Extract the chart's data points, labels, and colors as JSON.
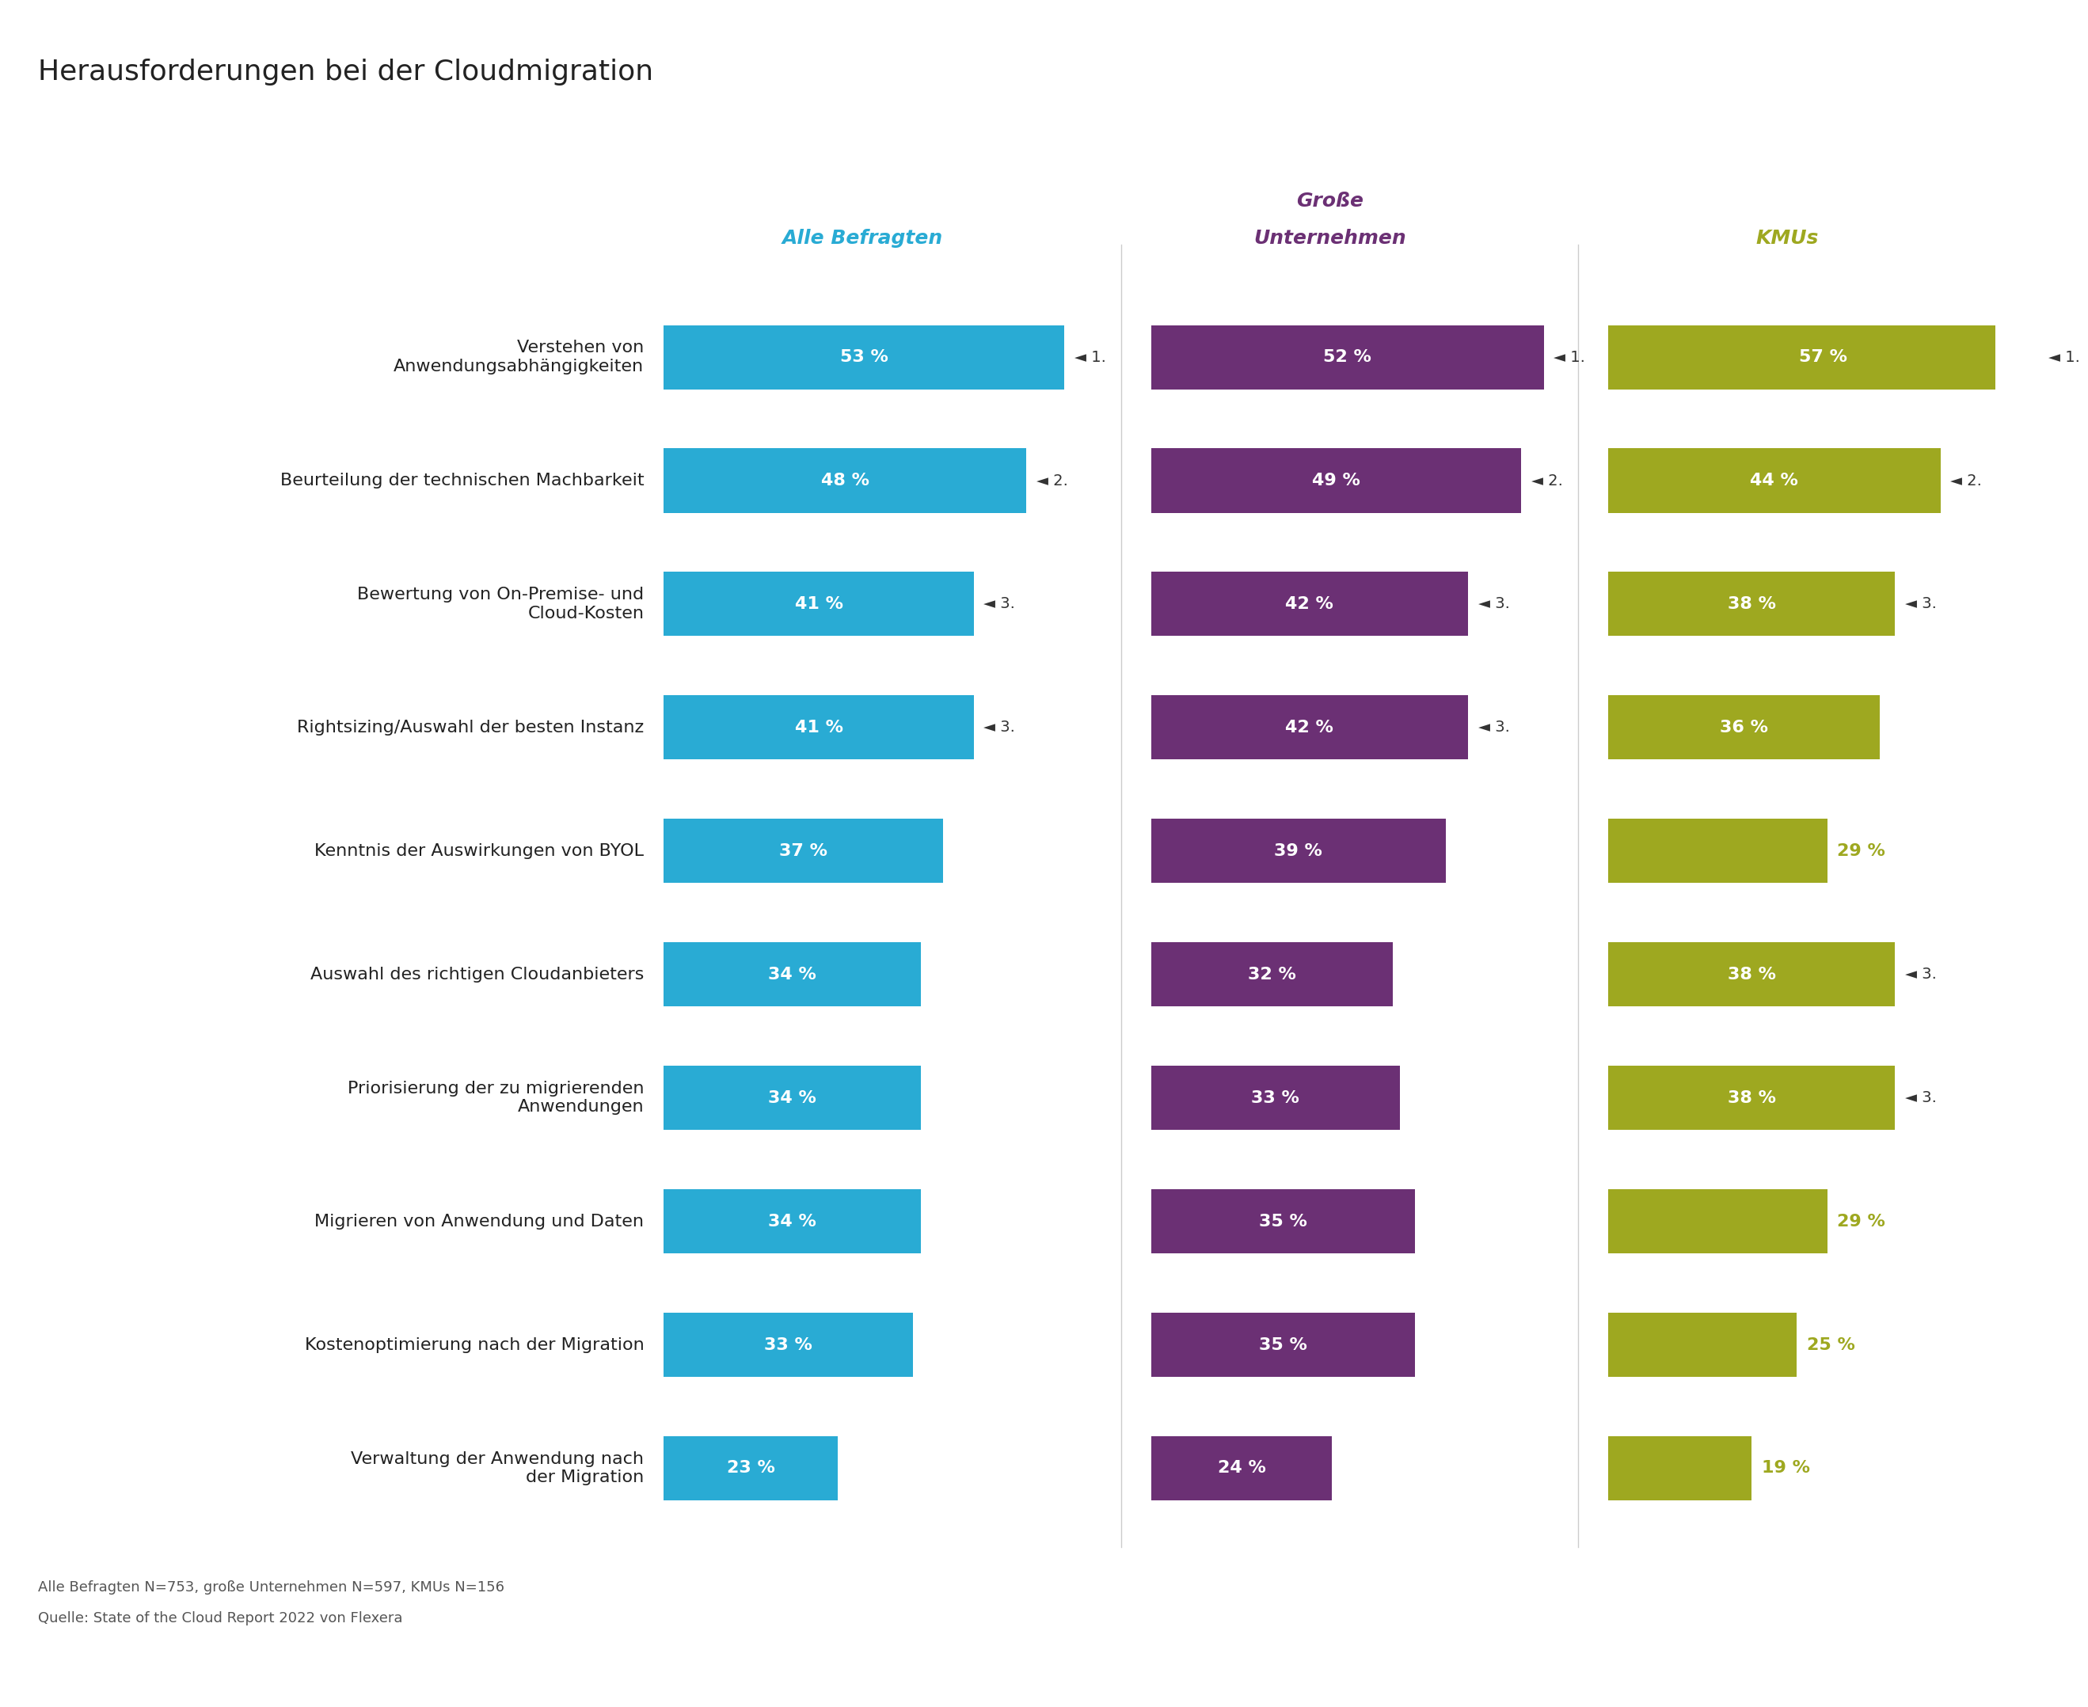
{
  "title": "Herausforderungen bei der Cloudmigration",
  "col_headers": {
    "col1": "Alle Befragten",
    "col2": "Große\nUnternehmen",
    "col3": "KMUs"
  },
  "col_colors": {
    "col1": "#29ABD4",
    "col2": "#6B3074",
    "col3": "#9EA820"
  },
  "categories": [
    "Verstehen von\nAnwendungsabhängigkeiten",
    "Beurteilung der technischen Machbarkeit",
    "Bewertung von On-Premise- und\nCloud-Kosten",
    "Rightsizing/Auswahl der besten Instanz",
    "Kenntnis der Auswirkungen von BYOL",
    "Auswahl des richtigen Cloudanbieters",
    "Priorisierung der zu migrierenden\nAnwendungen",
    "Migrieren von Anwendung und Daten",
    "Kostenoptimierung nach der Migration",
    "Verwaltung der Anwendung nach\nder Migration"
  ],
  "values_col1": [
    53,
    48,
    41,
    41,
    37,
    34,
    34,
    34,
    33,
    23
  ],
  "values_col2": [
    52,
    49,
    42,
    42,
    39,
    32,
    33,
    35,
    35,
    24
  ],
  "values_col3": [
    57,
    44,
    38,
    36,
    29,
    38,
    38,
    29,
    25,
    19
  ],
  "ranks_col1": [
    "1.",
    "2.",
    "3.",
    "3.",
    null,
    null,
    null,
    null,
    null,
    null
  ],
  "ranks_col2": [
    "1.",
    "2.",
    "3.",
    "3.",
    null,
    null,
    null,
    null,
    null,
    null
  ],
  "ranks_col3": [
    "1.",
    "2.",
    "3.",
    null,
    null,
    "3.",
    "3.",
    null,
    null,
    null
  ],
  "footnote1": "Alle Befragten N=753, große Unternehmen N=597, KMUs N=156",
  "footnote2": "Quelle: State of the Cloud Report 2022 von Flexera",
  "background_color": "#FFFFFF",
  "col3_inside_threshold": 30
}
